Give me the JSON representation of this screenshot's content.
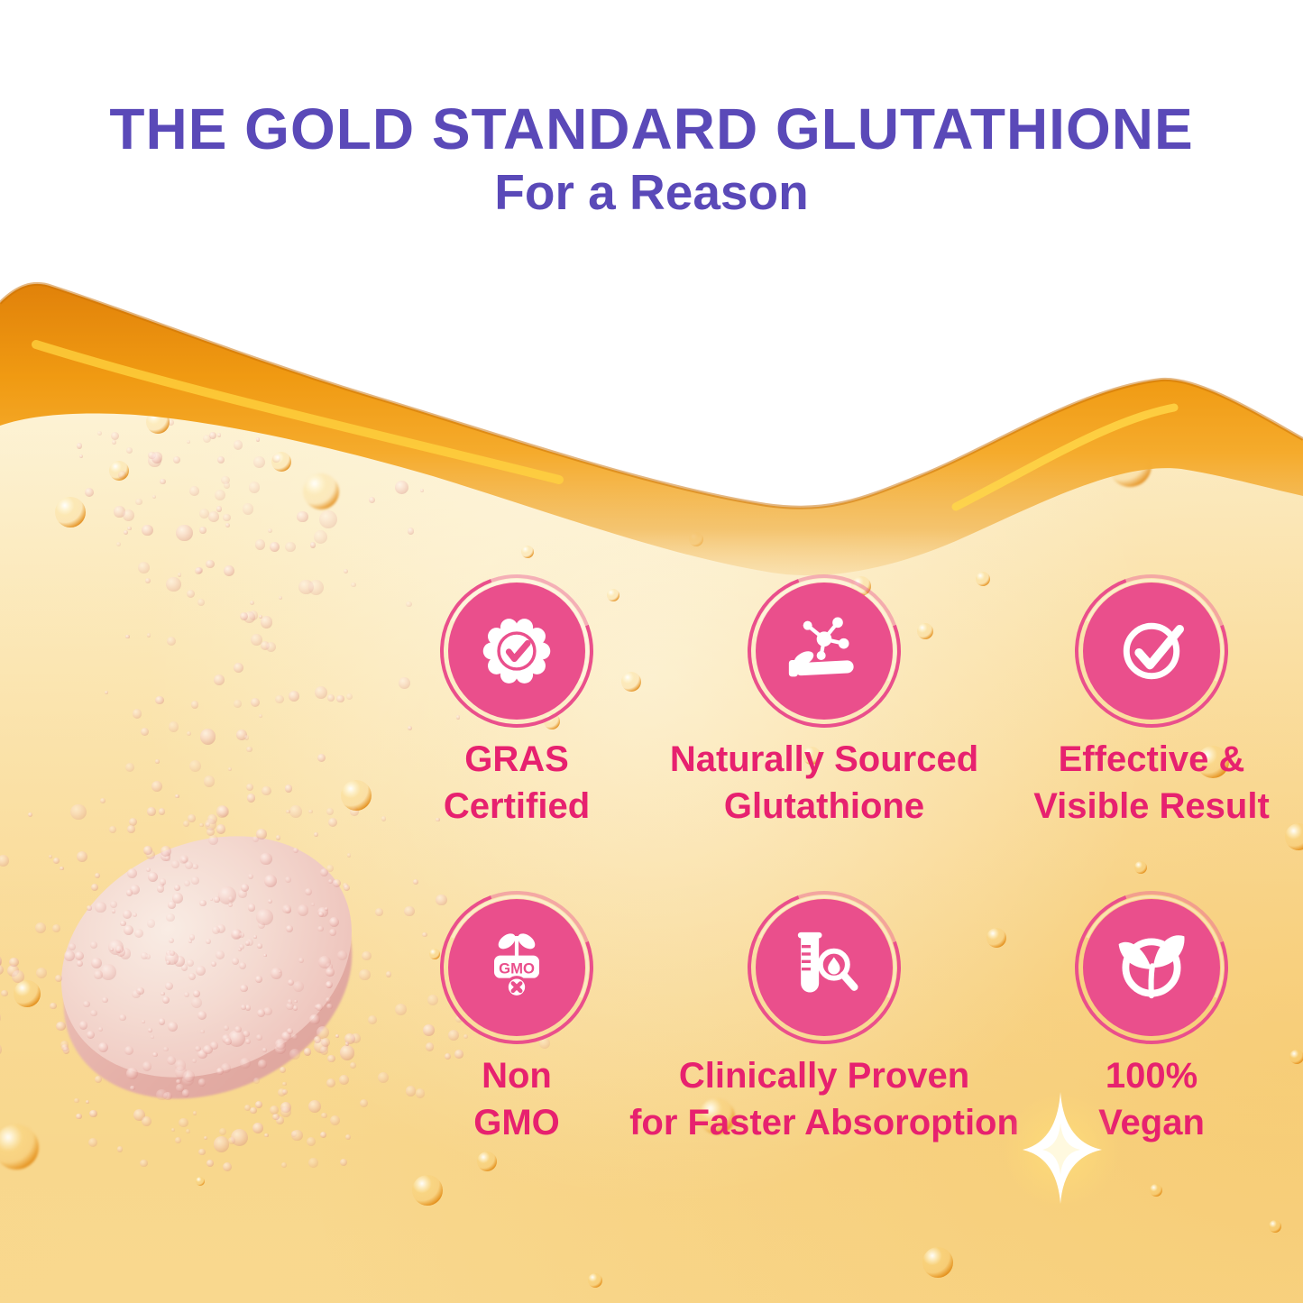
{
  "header": {
    "title": "THE GOLD STANDARD GLUTATHIONE",
    "subtitle": "For a Reason"
  },
  "colors": {
    "title_purple": "#5a49b8",
    "label_pink": "#e7216f",
    "badge_pink": "#ea4f8c",
    "wave_orange": "#f09a12",
    "liquid_gold": "#f8d88f"
  },
  "scene": {
    "tablet": "dissolving effervescent tablet with pink bubble plume",
    "sparkle": "four-point light sparkle"
  },
  "badges": [
    {
      "icon": "certified-seal-icon",
      "line1": "GRAS",
      "line2": "Certified"
    },
    {
      "icon": "molecule-hand-icon",
      "line1": "Naturally Sourced",
      "line2": "Glutathione"
    },
    {
      "icon": "check-circle-icon",
      "line1": "Effective &",
      "line2": "Visible Result"
    },
    {
      "icon": "non-gmo-icon",
      "line1": "Non",
      "line2": "GMO",
      "icon_text": "GMO"
    },
    {
      "icon": "lab-test-icon",
      "line1": "Clinically Proven",
      "line2": "for Faster Absoroption"
    },
    {
      "icon": "vegan-leaf-icon",
      "line1": "100%",
      "line2": "Vegan"
    }
  ]
}
